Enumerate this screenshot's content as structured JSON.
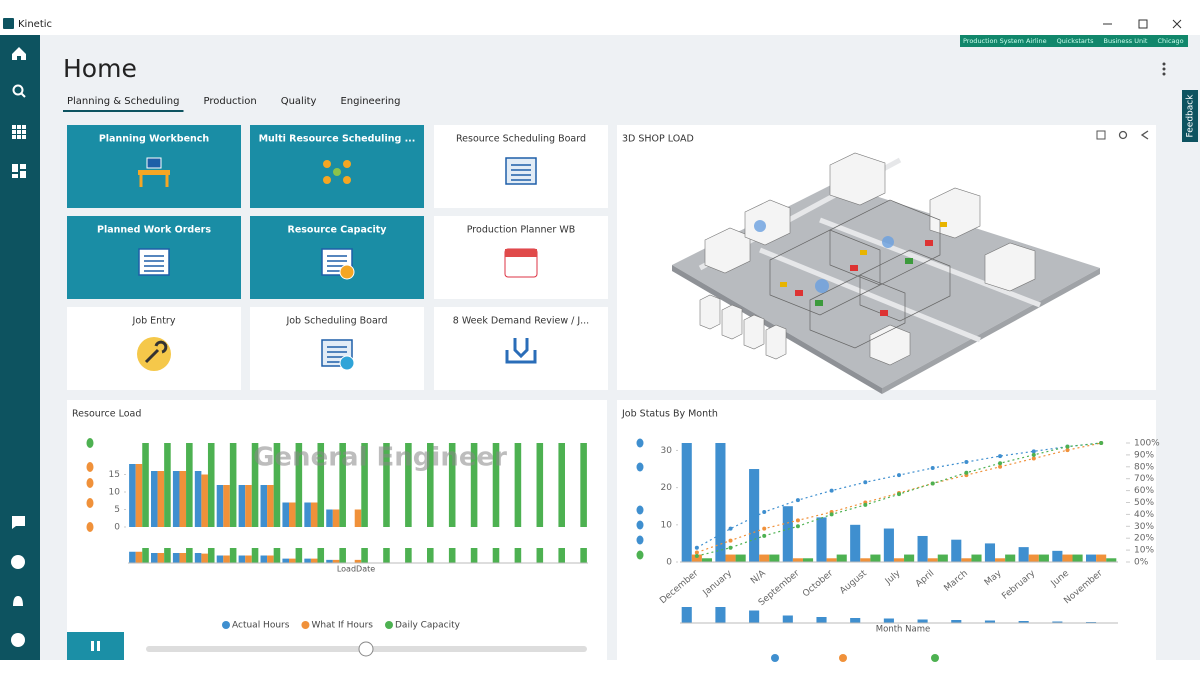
{
  "window": {
    "title": "Kinetic"
  },
  "context_bar": [
    "Production System Airline",
    "Quickstarts",
    "Business Unit",
    "Chicago"
  ],
  "page": {
    "title": "Home",
    "tabs": [
      "Planning & Scheduling",
      "Production",
      "Quality",
      "Engineering"
    ],
    "active_tab": 0
  },
  "feedback": "Feedback",
  "tiles": [
    {
      "label": "Planning Workbench",
      "style": "teal"
    },
    {
      "label": "Multi Resource Scheduling ...",
      "style": "teal"
    },
    {
      "label": "Resource Scheduling Board",
      "style": "white"
    },
    {
      "label": "Planned Work Orders",
      "style": "teal"
    },
    {
      "label": "Resource Capacity",
      "style": "teal"
    },
    {
      "label": "Production Planner WB",
      "style": "white"
    },
    {
      "label": "Job Entry",
      "style": "white"
    },
    {
      "label": "Job Scheduling Board",
      "style": "white"
    },
    {
      "label": "8 Week Demand Review / J...",
      "style": "white"
    }
  ],
  "shop_load": {
    "title": "3D SHOP LOAD"
  },
  "resource_load": {
    "title": "Resource Load",
    "chart_data": {
      "type": "bar",
      "watermark": "General Engineer",
      "x_label": "LoadDate",
      "ylim": [
        0,
        24
      ],
      "yticks": [
        0,
        5,
        10,
        15
      ],
      "series": [
        {
          "name": "Actual Hours",
          "color": "#3f8fcf",
          "values": [
            18,
            16,
            16,
            16,
            12,
            12,
            12,
            7,
            7,
            5,
            0,
            0,
            0,
            0,
            0,
            0,
            0,
            0,
            0,
            0,
            0
          ]
        },
        {
          "name": "What If Hours",
          "color": "#f0913a",
          "values": [
            18,
            16,
            16,
            15,
            12,
            12,
            12,
            7,
            7,
            5,
            5,
            0,
            0,
            0,
            0,
            0,
            0,
            0,
            0,
            0,
            0
          ]
        },
        {
          "name": "Daily Capacity",
          "color": "#4db151",
          "values": [
            24,
            24,
            24,
            24,
            24,
            24,
            24,
            24,
            24,
            24,
            24,
            24,
            24,
            24,
            24,
            24,
            24,
            24,
            24,
            24,
            24
          ]
        }
      ]
    }
  },
  "job_status": {
    "title": "Job Status By Month",
    "chart_data": {
      "type": "bar",
      "x_label": "Month Name",
      "categories": [
        "December",
        "January",
        "N/A",
        "September",
        "October",
        "August",
        "July",
        "April",
        "March",
        "May",
        "February",
        "June",
        "November"
      ],
      "ylim": [
        0,
        32
      ],
      "yticks": [
        0,
        10,
        20,
        30
      ],
      "y2lim": [
        0,
        100
      ],
      "y2ticks": [
        {
          "value": 0,
          "label": "0%"
        },
        {
          "value": 10,
          "label": "10%"
        },
        {
          "value": 20,
          "label": "20%"
        },
        {
          "value": 30,
          "label": "30%"
        },
        {
          "value": 40,
          "label": "40%"
        },
        {
          "value": 50,
          "label": "50%"
        },
        {
          "value": 60,
          "label": "60%"
        },
        {
          "value": 70,
          "label": "70%"
        },
        {
          "value": 80,
          "label": "80%"
        },
        {
          "value": 90,
          "label": "90%"
        },
        {
          "value": 100,
          "label": "100%"
        }
      ],
      "series": [
        {
          "color": "#3f8fcf",
          "values": [
            32,
            32,
            25,
            15,
            12,
            10,
            9,
            7,
            6,
            5,
            4,
            3,
            2
          ]
        },
        {
          "color": "#f0913a",
          "values": [
            2,
            2,
            2,
            1,
            1,
            1,
            1,
            1,
            1,
            1,
            2,
            2,
            2
          ]
        },
        {
          "color": "#4db151",
          "values": [
            1,
            2,
            2,
            1,
            2,
            2,
            2,
            2,
            2,
            2,
            2,
            2,
            1
          ]
        }
      ],
      "lines": [
        {
          "color": "#3f8fcf",
          "axis": "y2",
          "values": [
            12,
            28,
            42,
            52,
            60,
            67,
            73,
            79,
            84,
            89,
            93,
            97,
            100
          ]
        },
        {
          "color": "#f0913a",
          "axis": "y2",
          "values": [
            8,
            18,
            28,
            35,
            42,
            50,
            58,
            66,
            73,
            80,
            87,
            94,
            100
          ]
        },
        {
          "color": "#4db151",
          "axis": "y2",
          "values": [
            5,
            12,
            22,
            30,
            40,
            48,
            57,
            66,
            75,
            83,
            90,
            97,
            100
          ]
        }
      ]
    }
  }
}
